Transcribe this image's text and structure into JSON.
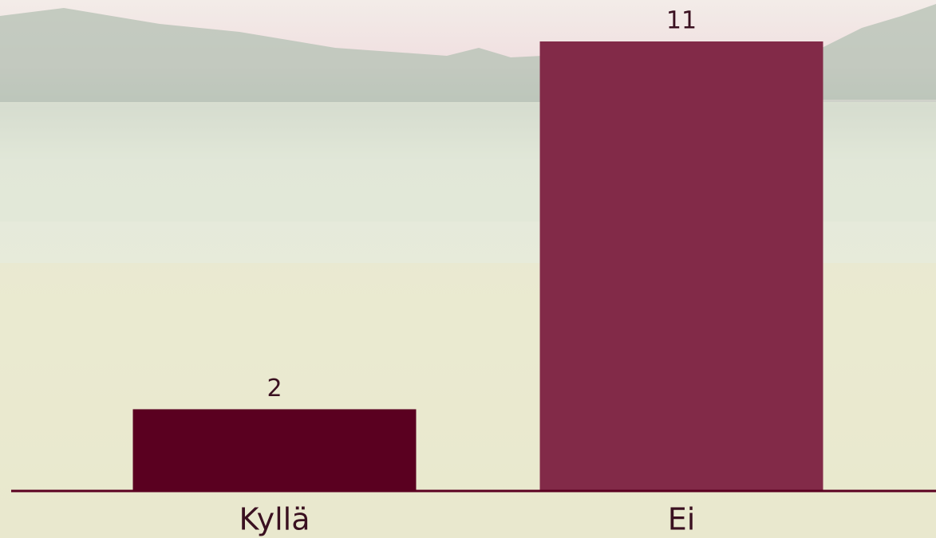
{
  "chart_data": {
    "type": "bar",
    "categories": [
      "Kyllä",
      "Ei"
    ],
    "values": [
      2,
      11
    ],
    "colors": [
      "#5a0020",
      "#822a48"
    ]
  }
}
